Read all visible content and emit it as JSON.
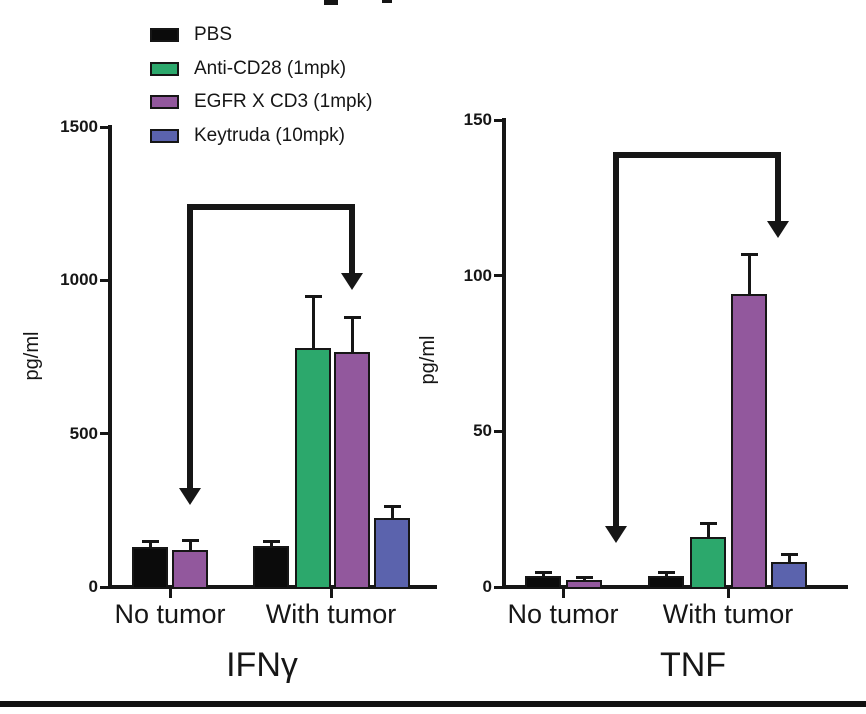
{
  "legend": {
    "items": [
      {
        "label": "PBS",
        "color": "#0b0b0b"
      },
      {
        "label": "Anti-CD28 (1mpk)",
        "color": "#2ca86c"
      },
      {
        "label": "EGFR X CD3 (1mpk)",
        "color": "#92589d"
      },
      {
        "label": "Keytruda (10mpk)",
        "color": "#5b63ad"
      }
    ],
    "position": "top-left"
  },
  "chart_data": [
    {
      "type": "bar",
      "title": "IFNγ",
      "ylabel": "pg/ml",
      "ylim": [
        0,
        1500
      ],
      "yticks": [
        0,
        500,
        1000,
        1500
      ],
      "categories": [
        "No tumor",
        "With tumor"
      ],
      "grid": false,
      "series": [
        {
          "name": "PBS",
          "values": [
            130,
            135
          ],
          "errors": [
            20,
            15
          ]
        },
        {
          "name": "Anti-CD28 (1mpk)",
          "values": [
            null,
            780
          ],
          "errors": [
            null,
            170
          ]
        },
        {
          "name": "EGFR X CD3 (1mpk)",
          "values": [
            120,
            765
          ],
          "errors": [
            32,
            115
          ]
        },
        {
          "name": "Keytruda (10mpk)",
          "values": [
            null,
            225
          ],
          "errors": [
            null,
            40
          ]
        }
      ],
      "annotation": {
        "type": "comparison-arrow",
        "from": {
          "category": "No tumor",
          "series": "EGFR X CD3 (1mpk)"
        },
        "to": {
          "category": "With tumor",
          "series": "EGFR X CD3 (1mpk)"
        }
      }
    },
    {
      "type": "bar",
      "title": "TNF",
      "ylabel": "pg/ml",
      "ylim": [
        0,
        150
      ],
      "yticks": [
        0,
        50,
        100,
        150
      ],
      "categories": [
        "No tumor",
        "With tumor"
      ],
      "grid": false,
      "series": [
        {
          "name": "PBS",
          "values": [
            3.5,
            3.5
          ],
          "errors": [
            1.2,
            1.4
          ]
        },
        {
          "name": "Anti-CD28 (1mpk)",
          "values": [
            null,
            16
          ],
          "errors": [
            null,
            4.5
          ]
        },
        {
          "name": "EGFR X CD3 (1mpk)",
          "values": [
            2.2,
            94
          ],
          "errors": [
            1,
            13
          ]
        },
        {
          "name": "Keytruda (10mpk)",
          "values": [
            null,
            8
          ],
          "errors": [
            null,
            2.5
          ]
        }
      ],
      "annotation": {
        "type": "comparison-arrow",
        "from": {
          "category": "No tumor",
          "series": "EGFR X CD3 (1mpk)"
        },
        "to": {
          "category": "With tumor",
          "series": "EGFR X CD3 (1mpk)"
        }
      }
    }
  ]
}
